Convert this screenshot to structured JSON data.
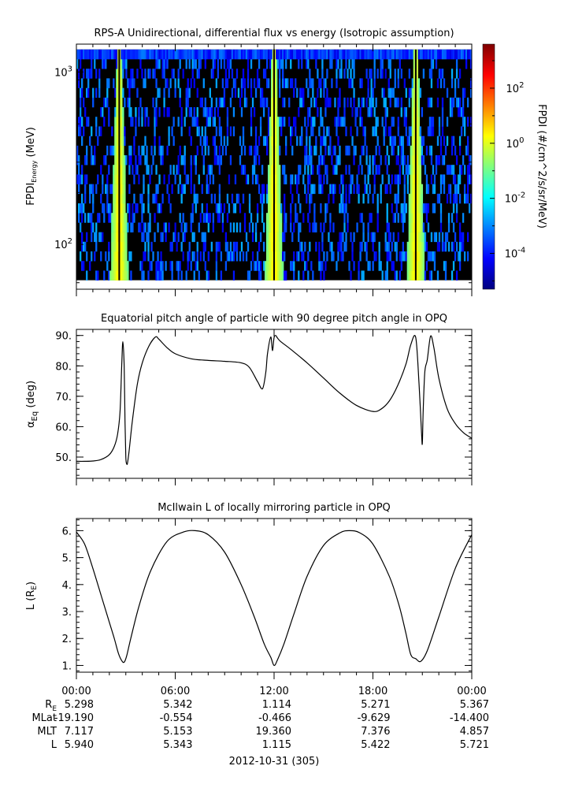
{
  "chart_data": [
    {
      "type": "heatmap",
      "title": "RPS-A Unidirectional, differential flux vs energy (Isotropic assumption)",
      "ylabel_main": "FPDI",
      "ylabel_sub": "Energy",
      "ylabel_unit": "(MeV)",
      "y_scale": "log",
      "ylim": [
        55,
        1450
      ],
      "y_ticks": [
        {
          "label_base": "10",
          "label_exp": "3",
          "value": 1000
        },
        {
          "label_base": "10",
          "label_exp": "2",
          "value": 100
        }
      ],
      "x_range_hours": [
        0,
        24
      ],
      "colorbar": {
        "label": "FPDI (#/cm^2/s/sr/MeV)",
        "scale": "log",
        "range_log10": [
          -5.3,
          3.6
        ],
        "ticks": [
          {
            "label_base": "10",
            "label_exp": "2",
            "value_log10": 2
          },
          {
            "label_base": "10",
            "label_exp": "0",
            "value_log10": 0
          },
          {
            "label_base": "10",
            "label_exp": "-2",
            "value_log10": -2
          },
          {
            "label_base": "10",
            "label_exp": "-4",
            "value_log10": -4
          }
        ],
        "colors": [
          "#00007f",
          "#0000ff",
          "#007fff",
          "#00ffff",
          "#7fff7f",
          "#ffff00",
          "#ff7f00",
          "#ff0000",
          "#7f0000"
        ]
      },
      "flux_peaks_hours": [
        2.6,
        12.0,
        20.6
      ],
      "background_color": "#000000"
    },
    {
      "type": "line",
      "title": "Equatorial pitch angle of particle with 90 degree pitch angle in OPQ",
      "ylabel_main": "α",
      "ylabel_sub": "Eq",
      "ylabel_unit": "(deg)",
      "ylim": [
        43,
        92
      ],
      "yticks": [
        "50.",
        "60.",
        "70.",
        "80.",
        "90."
      ],
      "ytick_values": [
        50,
        60,
        70,
        80,
        90
      ],
      "x": [
        0,
        0.5,
        1.0,
        1.5,
        2.0,
        2.3,
        2.5,
        2.65,
        2.75,
        2.82,
        2.9,
        2.95,
        3.0,
        3.05,
        3.1,
        3.2,
        3.4,
        3.7,
        4.0,
        4.4,
        4.8,
        5.0,
        5.5,
        6.0,
        7.0,
        8.0,
        9.0,
        10.0,
        10.5,
        11.0,
        11.3,
        11.5,
        11.6,
        11.8,
        11.9,
        12.0,
        12.1,
        12.2,
        12.4,
        13.0,
        14.0,
        15.0,
        16.0,
        17.0,
        18.0,
        18.5,
        19.0,
        19.5,
        20.0,
        20.3,
        20.6,
        20.8,
        20.95,
        21.0,
        21.05,
        21.15,
        21.3,
        21.5,
        21.7,
        22.0,
        22.5,
        23.0,
        23.5,
        24.0
      ],
      "y": [
        48.6,
        48.6,
        48.7,
        49.2,
        50.8,
        53.5,
        57.5,
        65.0,
        80.0,
        88.0,
        80.0,
        62.0,
        50.0,
        47.8,
        48.0,
        52.0,
        62.0,
        74.0,
        81.0,
        86.5,
        89.5,
        88.8,
        86.0,
        84.0,
        82.3,
        81.8,
        81.5,
        81.0,
        79.5,
        74.8,
        72.5,
        78.0,
        84.0,
        89.5,
        85.0,
        89.3,
        90.0,
        89.2,
        88.0,
        85.5,
        81.0,
        76.0,
        71.0,
        67.0,
        65.0,
        65.8,
        68.5,
        73.5,
        80.5,
        87.0,
        89.3,
        74.0,
        58.0,
        54.5,
        65.0,
        78.0,
        82.0,
        89.8,
        86.0,
        76.0,
        66.0,
        61.0,
        58.0,
        56.2
      ]
    },
    {
      "type": "line",
      "title": "McIlwain L of locally mirroring particle in OPQ",
      "ylabel_main": "L (R",
      "ylabel_sub": "E",
      "ylabel_unit": ")",
      "ylim": [
        0.75,
        6.45
      ],
      "yticks": [
        "1.",
        "2.",
        "3.",
        "4.",
        "5.",
        "6."
      ],
      "ytick_values": [
        1,
        2,
        3,
        4,
        5,
        6
      ],
      "x": [
        0,
        0.5,
        1.0,
        1.5,
        2.0,
        2.3,
        2.55,
        2.75,
        2.9,
        3.05,
        3.3,
        3.8,
        4.5,
        5.5,
        6.5,
        7.2,
        8.0,
        9.0,
        10.0,
        10.8,
        11.4,
        11.8,
        12.0,
        12.2,
        12.6,
        13.2,
        14.0,
        15.0,
        16.0,
        16.6,
        17.2,
        18.0,
        19.0,
        19.6,
        20.0,
        20.3,
        20.6,
        20.9,
        21.3,
        22.0,
        23.0,
        24.0
      ],
      "y": [
        5.95,
        5.5,
        4.6,
        3.6,
        2.6,
        2.0,
        1.45,
        1.18,
        1.12,
        1.35,
        2.0,
        3.2,
        4.5,
        5.6,
        5.95,
        6.0,
        5.85,
        5.2,
        4.0,
        2.8,
        1.8,
        1.3,
        1.0,
        1.2,
        1.8,
        2.9,
        4.3,
        5.45,
        5.92,
        6.0,
        5.92,
        5.5,
        4.3,
        3.2,
        2.2,
        1.4,
        1.25,
        1.15,
        1.55,
        2.8,
        4.6,
        5.85
      ]
    }
  ],
  "x_axis": {
    "tick_labels": [
      "00:00",
      "06:00",
      "12:00",
      "18:00",
      "00:00"
    ],
    "tick_hours": [
      0,
      6,
      12,
      18,
      24
    ],
    "minor_tick_interval_hours": 1
  },
  "ephemeris": {
    "rows": [
      {
        "label_main": "R",
        "label_sub": "E",
        "values": [
          "5.298",
          "5.342",
          "1.114",
          "5.271",
          "5.367"
        ]
      },
      {
        "label_main": "MLat",
        "label_sub": "",
        "values": [
          "-19.190",
          "-0.554",
          "-0.466",
          "-9.629",
          "-14.400"
        ]
      },
      {
        "label_main": "MLT",
        "label_sub": "",
        "values": [
          "7.117",
          "5.153",
          "19.360",
          "7.376",
          "4.857"
        ]
      },
      {
        "label_main": "L",
        "label_sub": "",
        "values": [
          "5.940",
          "5.343",
          "1.115",
          "5.422",
          "5.721"
        ]
      }
    ]
  },
  "date_label": "2012-10-31 (305)"
}
